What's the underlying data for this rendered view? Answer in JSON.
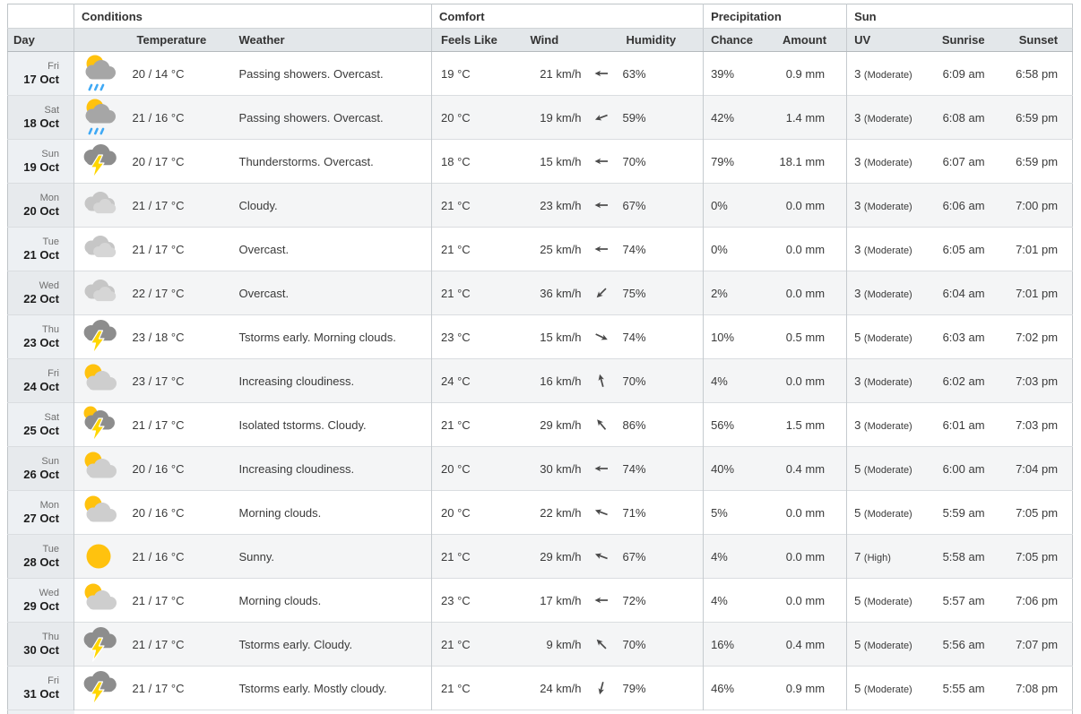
{
  "table": {
    "groups": {
      "conditions": "Conditions",
      "comfort": "Comfort",
      "precipitation": "Precipitation",
      "sun": "Sun"
    },
    "columns": {
      "day": "Day",
      "temperature": "Temperature",
      "weather": "Weather",
      "feels_like": "Feels Like",
      "wind": "Wind",
      "humidity": "Humidity",
      "chance": "Chance",
      "amount": "Amount",
      "uv": "UV",
      "sunrise": "Sunrise",
      "sunset": "Sunset"
    },
    "rows": [
      {
        "dow": "Fri",
        "date": "17 Oct",
        "icon": "sun-cloud-rain-icon",
        "temp": "20 / 14 °C",
        "weather": "Passing showers. Overcast.",
        "feels": "19 °C",
        "wind": "21 km/h",
        "wind_dir_deg": 180,
        "humidity": "63%",
        "chance": "39%",
        "amount": "0.9 mm",
        "uv": "3",
        "uv_label": "(Moderate)",
        "sunrise": "6:09 am",
        "sunset": "6:58 pm"
      },
      {
        "dow": "Sat",
        "date": "18 Oct",
        "icon": "sun-cloud-rain-icon",
        "temp": "21 / 16 °C",
        "weather": "Passing showers. Overcast.",
        "feels": "20 °C",
        "wind": "19 km/h",
        "wind_dir_deg": 160,
        "humidity": "59%",
        "chance": "42%",
        "amount": "1.4 mm",
        "uv": "3",
        "uv_label": "(Moderate)",
        "sunrise": "6:08 am",
        "sunset": "6:59 pm"
      },
      {
        "dow": "Sun",
        "date": "19 Oct",
        "icon": "thunderstorm-icon",
        "temp": "20 / 17 °C",
        "weather": "Thunderstorms. Overcast.",
        "feels": "18 °C",
        "wind": "15 km/h",
        "wind_dir_deg": 180,
        "humidity": "70%",
        "chance": "79%",
        "amount": "18.1 mm",
        "uv": "3",
        "uv_label": "(Moderate)",
        "sunrise": "6:07 am",
        "sunset": "6:59 pm"
      },
      {
        "dow": "Mon",
        "date": "20 Oct",
        "icon": "clouds-icon",
        "temp": "21 / 17 °C",
        "weather": "Cloudy.",
        "feels": "21 °C",
        "wind": "23 km/h",
        "wind_dir_deg": 180,
        "humidity": "67%",
        "chance": "0%",
        "amount": "0.0 mm",
        "uv": "3",
        "uv_label": "(Moderate)",
        "sunrise": "6:06 am",
        "sunset": "7:00 pm"
      },
      {
        "dow": "Tue",
        "date": "21 Oct",
        "icon": "clouds-icon",
        "temp": "21 / 17 °C",
        "weather": "Overcast.",
        "feels": "21 °C",
        "wind": "25 km/h",
        "wind_dir_deg": 180,
        "humidity": "74%",
        "chance": "0%",
        "amount": "0.0 mm",
        "uv": "3",
        "uv_label": "(Moderate)",
        "sunrise": "6:05 am",
        "sunset": "7:01 pm"
      },
      {
        "dow": "Wed",
        "date": "22 Oct",
        "icon": "clouds-icon",
        "temp": "22 / 17 °C",
        "weather": "Overcast.",
        "feels": "21 °C",
        "wind": "36 km/h",
        "wind_dir_deg": 135,
        "humidity": "75%",
        "chance": "2%",
        "amount": "0.0 mm",
        "uv": "3",
        "uv_label": "(Moderate)",
        "sunrise": "6:04 am",
        "sunset": "7:01 pm"
      },
      {
        "dow": "Thu",
        "date": "23 Oct",
        "icon": "thunderstorm-icon",
        "temp": "23 / 18 °C",
        "weather": "Tstorms early. Morning clouds.",
        "feels": "23 °C",
        "wind": "15 km/h",
        "wind_dir_deg": 25,
        "humidity": "74%",
        "chance": "10%",
        "amount": "0.5 mm",
        "uv": "5",
        "uv_label": "(Moderate)",
        "sunrise": "6:03 am",
        "sunset": "7:02 pm"
      },
      {
        "dow": "Fri",
        "date": "24 Oct",
        "icon": "sun-cloud-icon",
        "temp": "23 / 17 °C",
        "weather": "Increasing cloudiness.",
        "feels": "24 °C",
        "wind": "16 km/h",
        "wind_dir_deg": 255,
        "humidity": "70%",
        "chance": "4%",
        "amount": "0.0 mm",
        "uv": "3",
        "uv_label": "(Moderate)",
        "sunrise": "6:02 am",
        "sunset": "7:03 pm"
      },
      {
        "dow": "Sat",
        "date": "25 Oct",
        "icon": "sun-thunderstorm-icon",
        "temp": "21 / 17 °C",
        "weather": "Isolated tstorms. Cloudy.",
        "feels": "21 °C",
        "wind": "29 km/h",
        "wind_dir_deg": 230,
        "humidity": "86%",
        "chance": "56%",
        "amount": "1.5 mm",
        "uv": "3",
        "uv_label": "(Moderate)",
        "sunrise": "6:01 am",
        "sunset": "7:03 pm"
      },
      {
        "dow": "Sun",
        "date": "26 Oct",
        "icon": "sun-cloud-icon",
        "temp": "20 / 16 °C",
        "weather": "Increasing cloudiness.",
        "feels": "20 °C",
        "wind": "30 km/h",
        "wind_dir_deg": 180,
        "humidity": "74%",
        "chance": "40%",
        "amount": "0.4 mm",
        "uv": "5",
        "uv_label": "(Moderate)",
        "sunrise": "6:00 am",
        "sunset": "7:04 pm"
      },
      {
        "dow": "Mon",
        "date": "27 Oct",
        "icon": "sun-cloud-icon",
        "temp": "20 / 16 °C",
        "weather": "Morning clouds.",
        "feels": "20 °C",
        "wind": "22 km/h",
        "wind_dir_deg": 200,
        "humidity": "71%",
        "chance": "5%",
        "amount": "0.0 mm",
        "uv": "5",
        "uv_label": "(Moderate)",
        "sunrise": "5:59 am",
        "sunset": "7:05 pm"
      },
      {
        "dow": "Tue",
        "date": "28 Oct",
        "icon": "sun-icon",
        "temp": "21 / 16 °C",
        "weather": "Sunny.",
        "feels": "21 °C",
        "wind": "29 km/h",
        "wind_dir_deg": 200,
        "humidity": "67%",
        "chance": "4%",
        "amount": "0.0 mm",
        "uv": "7",
        "uv_label": "(High)",
        "sunrise": "5:58 am",
        "sunset": "7:05 pm"
      },
      {
        "dow": "Wed",
        "date": "29 Oct",
        "icon": "sun-cloud-icon",
        "temp": "21 / 17 °C",
        "weather": "Morning clouds.",
        "feels": "23 °C",
        "wind": "17 km/h",
        "wind_dir_deg": 180,
        "humidity": "72%",
        "chance": "4%",
        "amount": "0.0 mm",
        "uv": "5",
        "uv_label": "(Moderate)",
        "sunrise": "5:57 am",
        "sunset": "7:06 pm"
      },
      {
        "dow": "Thu",
        "date": "30 Oct",
        "icon": "thunderstorm-icon",
        "temp": "21 / 17 °C",
        "weather": "Tstorms early. Cloudy.",
        "feels": "21 °C",
        "wind": "9 km/h",
        "wind_dir_deg": 225,
        "humidity": "70%",
        "chance": "16%",
        "amount": "0.4 mm",
        "uv": "5",
        "uv_label": "(Moderate)",
        "sunrise": "5:56 am",
        "sunset": "7:07 pm"
      },
      {
        "dow": "Fri",
        "date": "31 Oct",
        "icon": "thunderstorm-icon",
        "temp": "21 / 17 °C",
        "weather": "Tstorms early. Mostly cloudy.",
        "feels": "21 °C",
        "wind": "24 km/h",
        "wind_dir_deg": 105,
        "humidity": "79%",
        "chance": "46%",
        "amount": "0.9 mm",
        "uv": "5",
        "uv_label": "(Moderate)",
        "sunrise": "5:55 am",
        "sunset": "7:08 pm"
      }
    ]
  },
  "colors": {
    "sun_yellow": "#FFC20E",
    "rain_blue": "#3FA9F5",
    "lightning_yellow": "#FFD600",
    "storm_cloud_gray": "#8d8d8d",
    "light_cloud_gray": "#c9c9c9",
    "subheader_bg": "#e3e7ea",
    "stripe_bg": "#f4f5f6",
    "day_cell_bg": "#edf0f3"
  }
}
